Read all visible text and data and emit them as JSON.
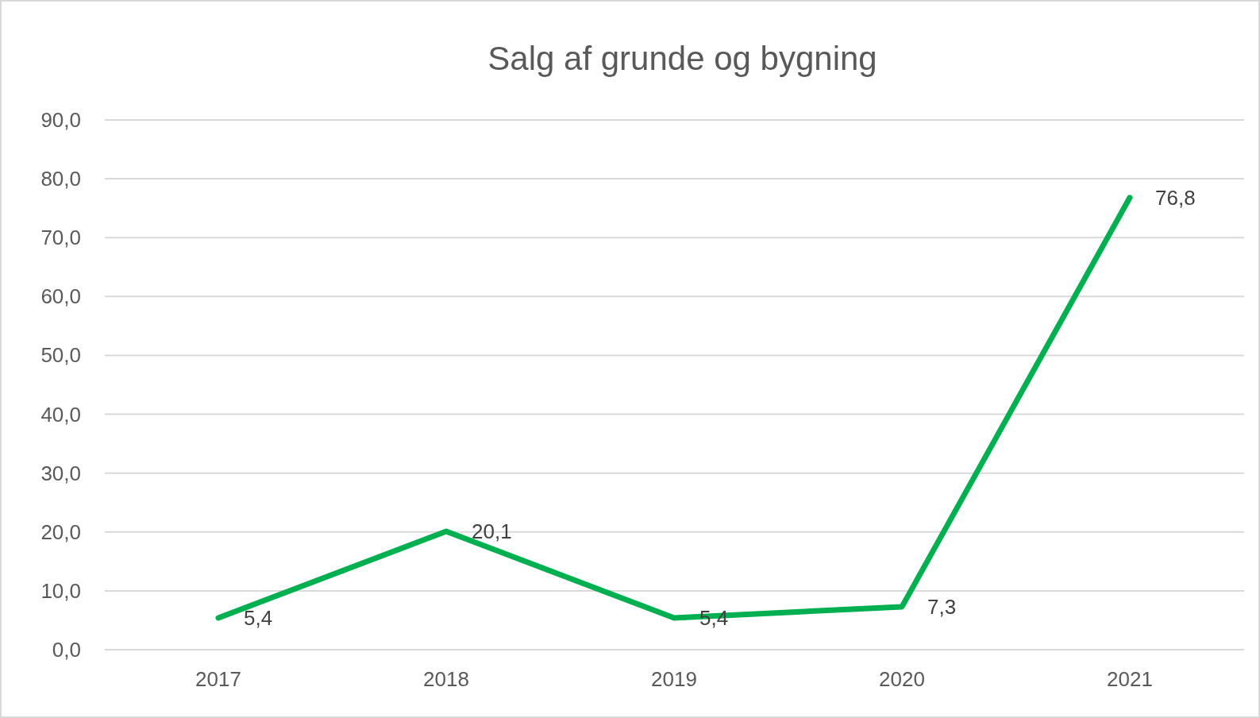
{
  "chart_data": {
    "type": "line",
    "title": "Salg af grunde og bygning",
    "categories": [
      "2017",
      "2018",
      "2019",
      "2020",
      "2021"
    ],
    "series": [
      {
        "color": "#00b050",
        "values": [
          5.4,
          20.1,
          5.4,
          7.3,
          76.8
        ],
        "value_labels": [
          "5,4",
          "20,1",
          "5,4",
          "7,3",
          "76,8"
        ]
      }
    ],
    "ylim": [
      0,
      90
    ],
    "yticks": [
      {
        "value": 0,
        "label": "0,0"
      },
      {
        "value": 10,
        "label": "10,0"
      },
      {
        "value": 20,
        "label": "20,0"
      },
      {
        "value": 30,
        "label": "30,0"
      },
      {
        "value": 40,
        "label": "40,0"
      },
      {
        "value": 50,
        "label": "50,0"
      },
      {
        "value": 60,
        "label": "60,0"
      },
      {
        "value": 70,
        "label": "70,0"
      },
      {
        "value": 80,
        "label": "80,0"
      },
      {
        "value": 90,
        "label": "90,0"
      }
    ],
    "grid": "y",
    "marker": "none",
    "line_style": "solid"
  }
}
